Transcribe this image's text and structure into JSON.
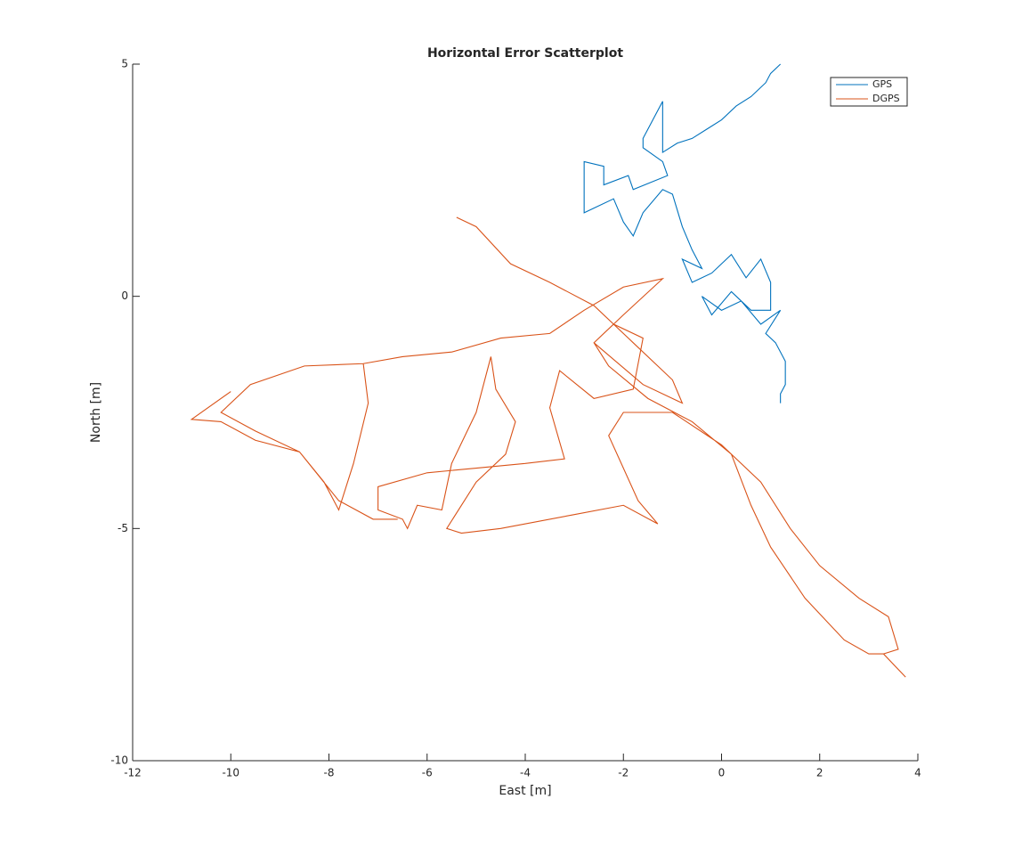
{
  "chart_data": {
    "type": "line",
    "title": "Horizontal Error Scatterplot",
    "x_label": "East [m]",
    "y_label": "North [m]",
    "xlim": [
      -12,
      4
    ],
    "xticks": [
      -12,
      -10,
      -8,
      -6,
      -4,
      -2,
      0,
      2,
      4
    ],
    "ylim": [
      -10,
      5
    ],
    "yticks": [
      -10,
      -5,
      0,
      5
    ],
    "grid": false,
    "legend": "northeast",
    "series": [
      {
        "name": "GPS",
        "color": "#0072bd",
        "x": [
          1.2,
          1.0,
          0.9,
          0.6,
          0.3,
          0,
          -0.3,
          -0.6,
          -0.9,
          -1.2,
          -1.2,
          -1.6,
          -1.6,
          -1.2,
          -1.1,
          -1.8,
          -1.9,
          -2.4,
          -2.4,
          -2.8,
          -2.8,
          -2.6,
          -2.2,
          -2.0,
          -1.8,
          -1.6,
          -1.2,
          -1.0,
          -0.8,
          -0.6,
          -0.4,
          -0.8,
          -0.6,
          -0.2,
          0.2,
          0.5,
          0.8,
          1.0,
          1.0,
          0.6,
          0.2,
          -0.2,
          -0.4,
          0,
          0.4,
          0.8,
          1.2,
          0.9,
          1.1,
          1.3,
          1.3,
          1.2,
          1.2
        ],
        "values": [
          5,
          4.8,
          4.6,
          4.3,
          4.1,
          3.8,
          3.6,
          3.4,
          3.3,
          3.1,
          4.2,
          3.4,
          3.2,
          2.9,
          2.6,
          2.3,
          2.6,
          2.4,
          2.8,
          2.9,
          1.8,
          1.9,
          2.1,
          1.6,
          1.3,
          1.8,
          2.3,
          2.2,
          1.5,
          1.0,
          0.6,
          0.8,
          0.3,
          0.5,
          0.9,
          0.4,
          0.8,
          0.3,
          -0.3,
          -0.3,
          0.1,
          -0.4,
          0.0,
          -0.3,
          -0.1,
          -0.6,
          -0.3,
          -0.8,
          -1.0,
          -1.4,
          -1.9,
          -2.1,
          -2.3
        ]
      },
      {
        "name": "DGPS",
        "color": "#d95319",
        "x": [
          -5.4,
          -5.0,
          -4.3,
          -3.5,
          -2.6,
          -1.8,
          -1.0,
          -0.8,
          -1.6,
          -2.6,
          -2.2,
          -1.6,
          -1.8,
          -2.6,
          -3.3,
          -3.5,
          -3.2,
          -4.0,
          -5.0,
          -6.0,
          -7.0,
          -7.0,
          -6.5,
          -6.4,
          -6.2,
          -5.7,
          -5.5,
          -5.0,
          -4.7,
          -4.6,
          -4.2,
          -4.4,
          -5.0,
          -5.6,
          -5.3,
          -4.5,
          -3.0,
          -2.0,
          -1.3,
          -1.7,
          -2.3,
          -2.0,
          -1.0,
          0.0,
          0.8,
          1.4,
          2.0,
          2.8,
          3.4,
          3.6,
          3.3,
          3.75,
          3.3,
          3.0,
          2.5,
          1.7,
          1.0,
          0.6,
          0.2,
          -0.6,
          -1.5,
          -2.3,
          -2.6,
          -2.0,
          -1.2,
          -2.0,
          -2.8,
          -3.5,
          -4.5,
          -5.5,
          -6.5,
          -7.3,
          -8.5,
          -9.6,
          -10.2,
          -9.5,
          -8.6,
          -7.8,
          -7.1,
          -6.6,
          null,
          -10.0,
          -10.8,
          -10.2,
          -9.5,
          -8.6,
          -8.1,
          -7.8,
          -7.5,
          -7.2,
          -7.3
        ],
        "values": [
          1.7,
          1.5,
          0.7,
          0.3,
          -0.2,
          -1.0,
          -1.8,
          -2.3,
          -1.9,
          -1.0,
          -0.6,
          -0.9,
          -2.0,
          -2.2,
          -1.6,
          -2.4,
          -3.5,
          -3.6,
          -3.7,
          -3.8,
          -4.1,
          -4.6,
          -4.8,
          -5.0,
          -4.5,
          -4.6,
          -3.6,
          -2.5,
          -1.3,
          -2.0,
          -2.7,
          -3.4,
          -4.0,
          -5.0,
          -5.1,
          -5.0,
          -4.7,
          -4.5,
          -4.9,
          -4.4,
          -3.0,
          -2.5,
          -2.5,
          -3.2,
          -4.0,
          -5.0,
          -5.8,
          -6.5,
          -6.9,
          -7.6,
          -7.7,
          -8.2,
          -7.7,
          -7.7,
          -7.4,
          -6.5,
          -5.4,
          -4.5,
          -3.4,
          -2.7,
          -2.2,
          -1.5,
          -1.0,
          -0.4,
          0.38,
          0.2,
          -0.3,
          -0.8,
          -0.9,
          -1.2,
          -1.3,
          -1.45,
          -1.5,
          -1.9,
          -2.5,
          -2.9,
          -3.35,
          -4.4,
          -4.8,
          -4.8,
          null,
          -2.05,
          -2.65,
          -2.7,
          -3.1,
          -3.35,
          -4.0,
          -4.6,
          -3.6,
          -2.3,
          -1.45
        ]
      }
    ]
  }
}
